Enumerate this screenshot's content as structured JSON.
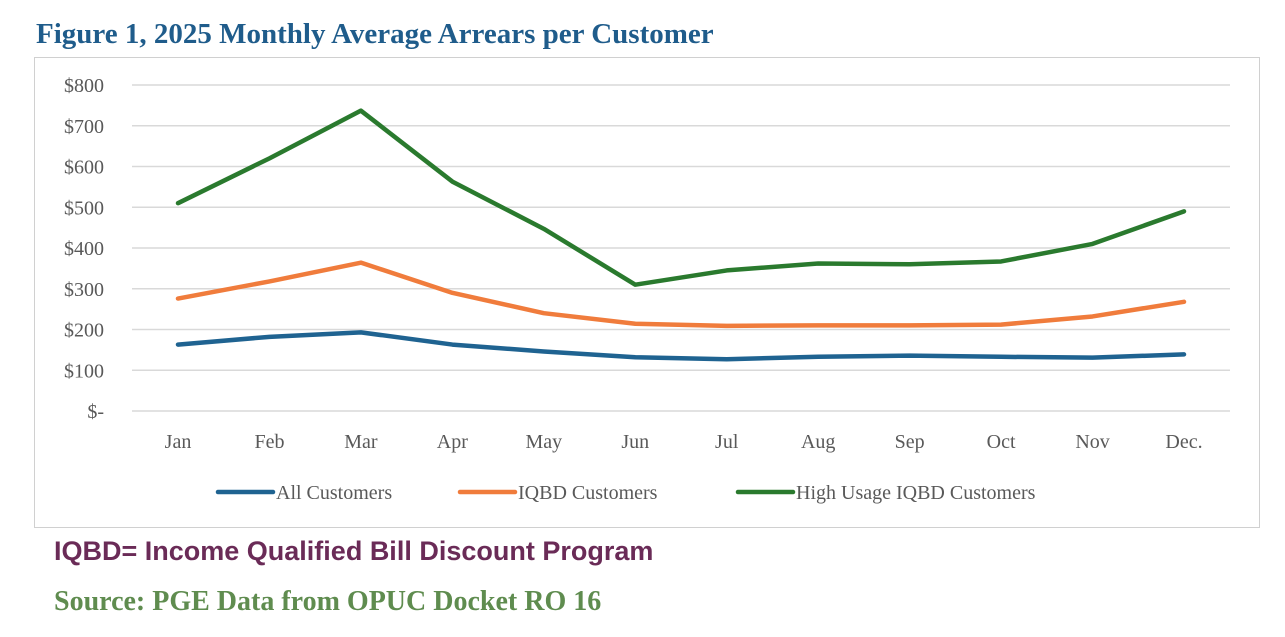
{
  "figure_title": "Figure 1, 2025 Monthly Average Arrears per Customer",
  "footnote": "IQBD= Income Qualified Bill Discount Program",
  "source": "Source: PGE Data from OPUC Docket RO 16",
  "chart_data": {
    "type": "line",
    "title": "Figure 1, 2025 Monthly Average Arrears per Customer",
    "xlabel": "",
    "ylabel": "",
    "categories": [
      "Jan",
      "Feb",
      "Mar",
      "Apr",
      "May",
      "Jun",
      "Jul",
      "Aug",
      "Sep",
      "Oct",
      "Nov",
      "Dec."
    ],
    "y_tick_labels": [
      "$-",
      "$100",
      "$200",
      "$300",
      "$400",
      "$500",
      "$600",
      "$700",
      "$800"
    ],
    "ylim": [
      0,
      800
    ],
    "grid": true,
    "legend_position": "bottom",
    "series": [
      {
        "name": "All Customers",
        "color": "#1f6391",
        "values": [
          163,
          182,
          193,
          163,
          146,
          132,
          127,
          133,
          136,
          133,
          131,
          139
        ]
      },
      {
        "name": "IQBD Customers",
        "color": "#f07c3c",
        "values": [
          276,
          318,
          364,
          290,
          240,
          214,
          209,
          210,
          210,
          212,
          232,
          268
        ]
      },
      {
        "name": "High Usage IQBD Customers",
        "color": "#2a7a2e",
        "values": [
          510,
          620,
          737,
          563,
          447,
          310,
          345,
          362,
          360,
          367,
          410,
          490
        ]
      }
    ]
  }
}
